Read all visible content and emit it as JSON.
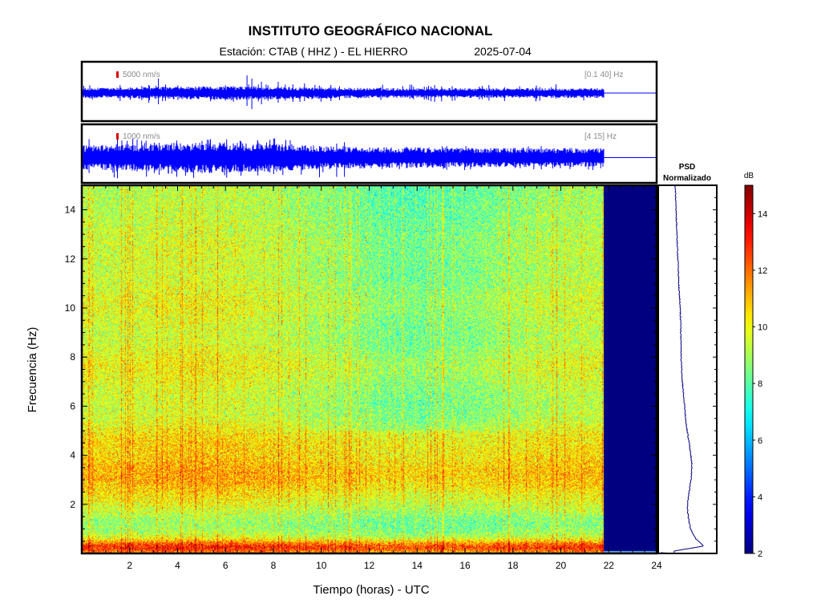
{
  "header": {
    "title": "INSTITUTO GEOGRÁFICO NACIONAL",
    "station": "Estación:  CTAB ( HHZ ) - EL HIERRO",
    "date": "2025-07-04"
  },
  "chart_data": [
    {
      "type": "line",
      "name": "seismogram-broadband",
      "scale_label": "5000 nm/s",
      "filter_label": "[0.1 40] Hz",
      "x_range": [
        0,
        24
      ],
      "data_end_hour": 21.8,
      "trace_color": "#0000ff",
      "bar_color": "#dd0000"
    },
    {
      "type": "line",
      "name": "seismogram-filtered",
      "scale_label": "1000 nm/s",
      "filter_label": "[4 15] Hz",
      "x_range": [
        0,
        24
      ],
      "data_end_hour": 21.8,
      "trace_color": "#0000ff",
      "bar_color": "#dd0000"
    },
    {
      "type": "heatmap",
      "name": "spectrogram",
      "xlabel": "Tiempo (horas) - UTC",
      "ylabel": "Frecuencia  (Hz)",
      "xlim": [
        0,
        24
      ],
      "ylim": [
        0,
        15
      ],
      "xticks": [
        2,
        4,
        6,
        8,
        10,
        12,
        14,
        16,
        18,
        20,
        22,
        24
      ],
      "yticks": [
        2,
        4,
        6,
        8,
        10,
        12,
        14
      ],
      "data_end_hour": 21.8,
      "no_data_color": "#000080",
      "colorbar": {
        "label": "dB",
        "min": 2,
        "max": 15,
        "ticks": [
          2,
          4,
          6,
          8,
          10,
          12,
          14
        ],
        "colormap": "jet"
      },
      "psd_title": "PSD",
      "psd_subtitle": "Normalizado",
      "psd_profile": {
        "freq_hz": [
          0.1,
          0.3,
          0.6,
          1.0,
          1.5,
          2.0,
          2.5,
          3.0,
          3.5,
          4.0,
          4.5,
          5.0,
          5.5,
          6.0,
          7.0,
          8.0,
          9.0,
          10.0,
          11.0,
          12.0,
          13.0,
          14.0,
          15.0
        ],
        "level": [
          0.0,
          1.0,
          0.72,
          0.55,
          0.47,
          0.44,
          0.5,
          0.56,
          0.6,
          0.56,
          0.5,
          0.43,
          0.38,
          0.35,
          0.27,
          0.23,
          0.22,
          0.2,
          0.15,
          0.12,
          0.09,
          0.06,
          0.03
        ]
      }
    }
  ]
}
